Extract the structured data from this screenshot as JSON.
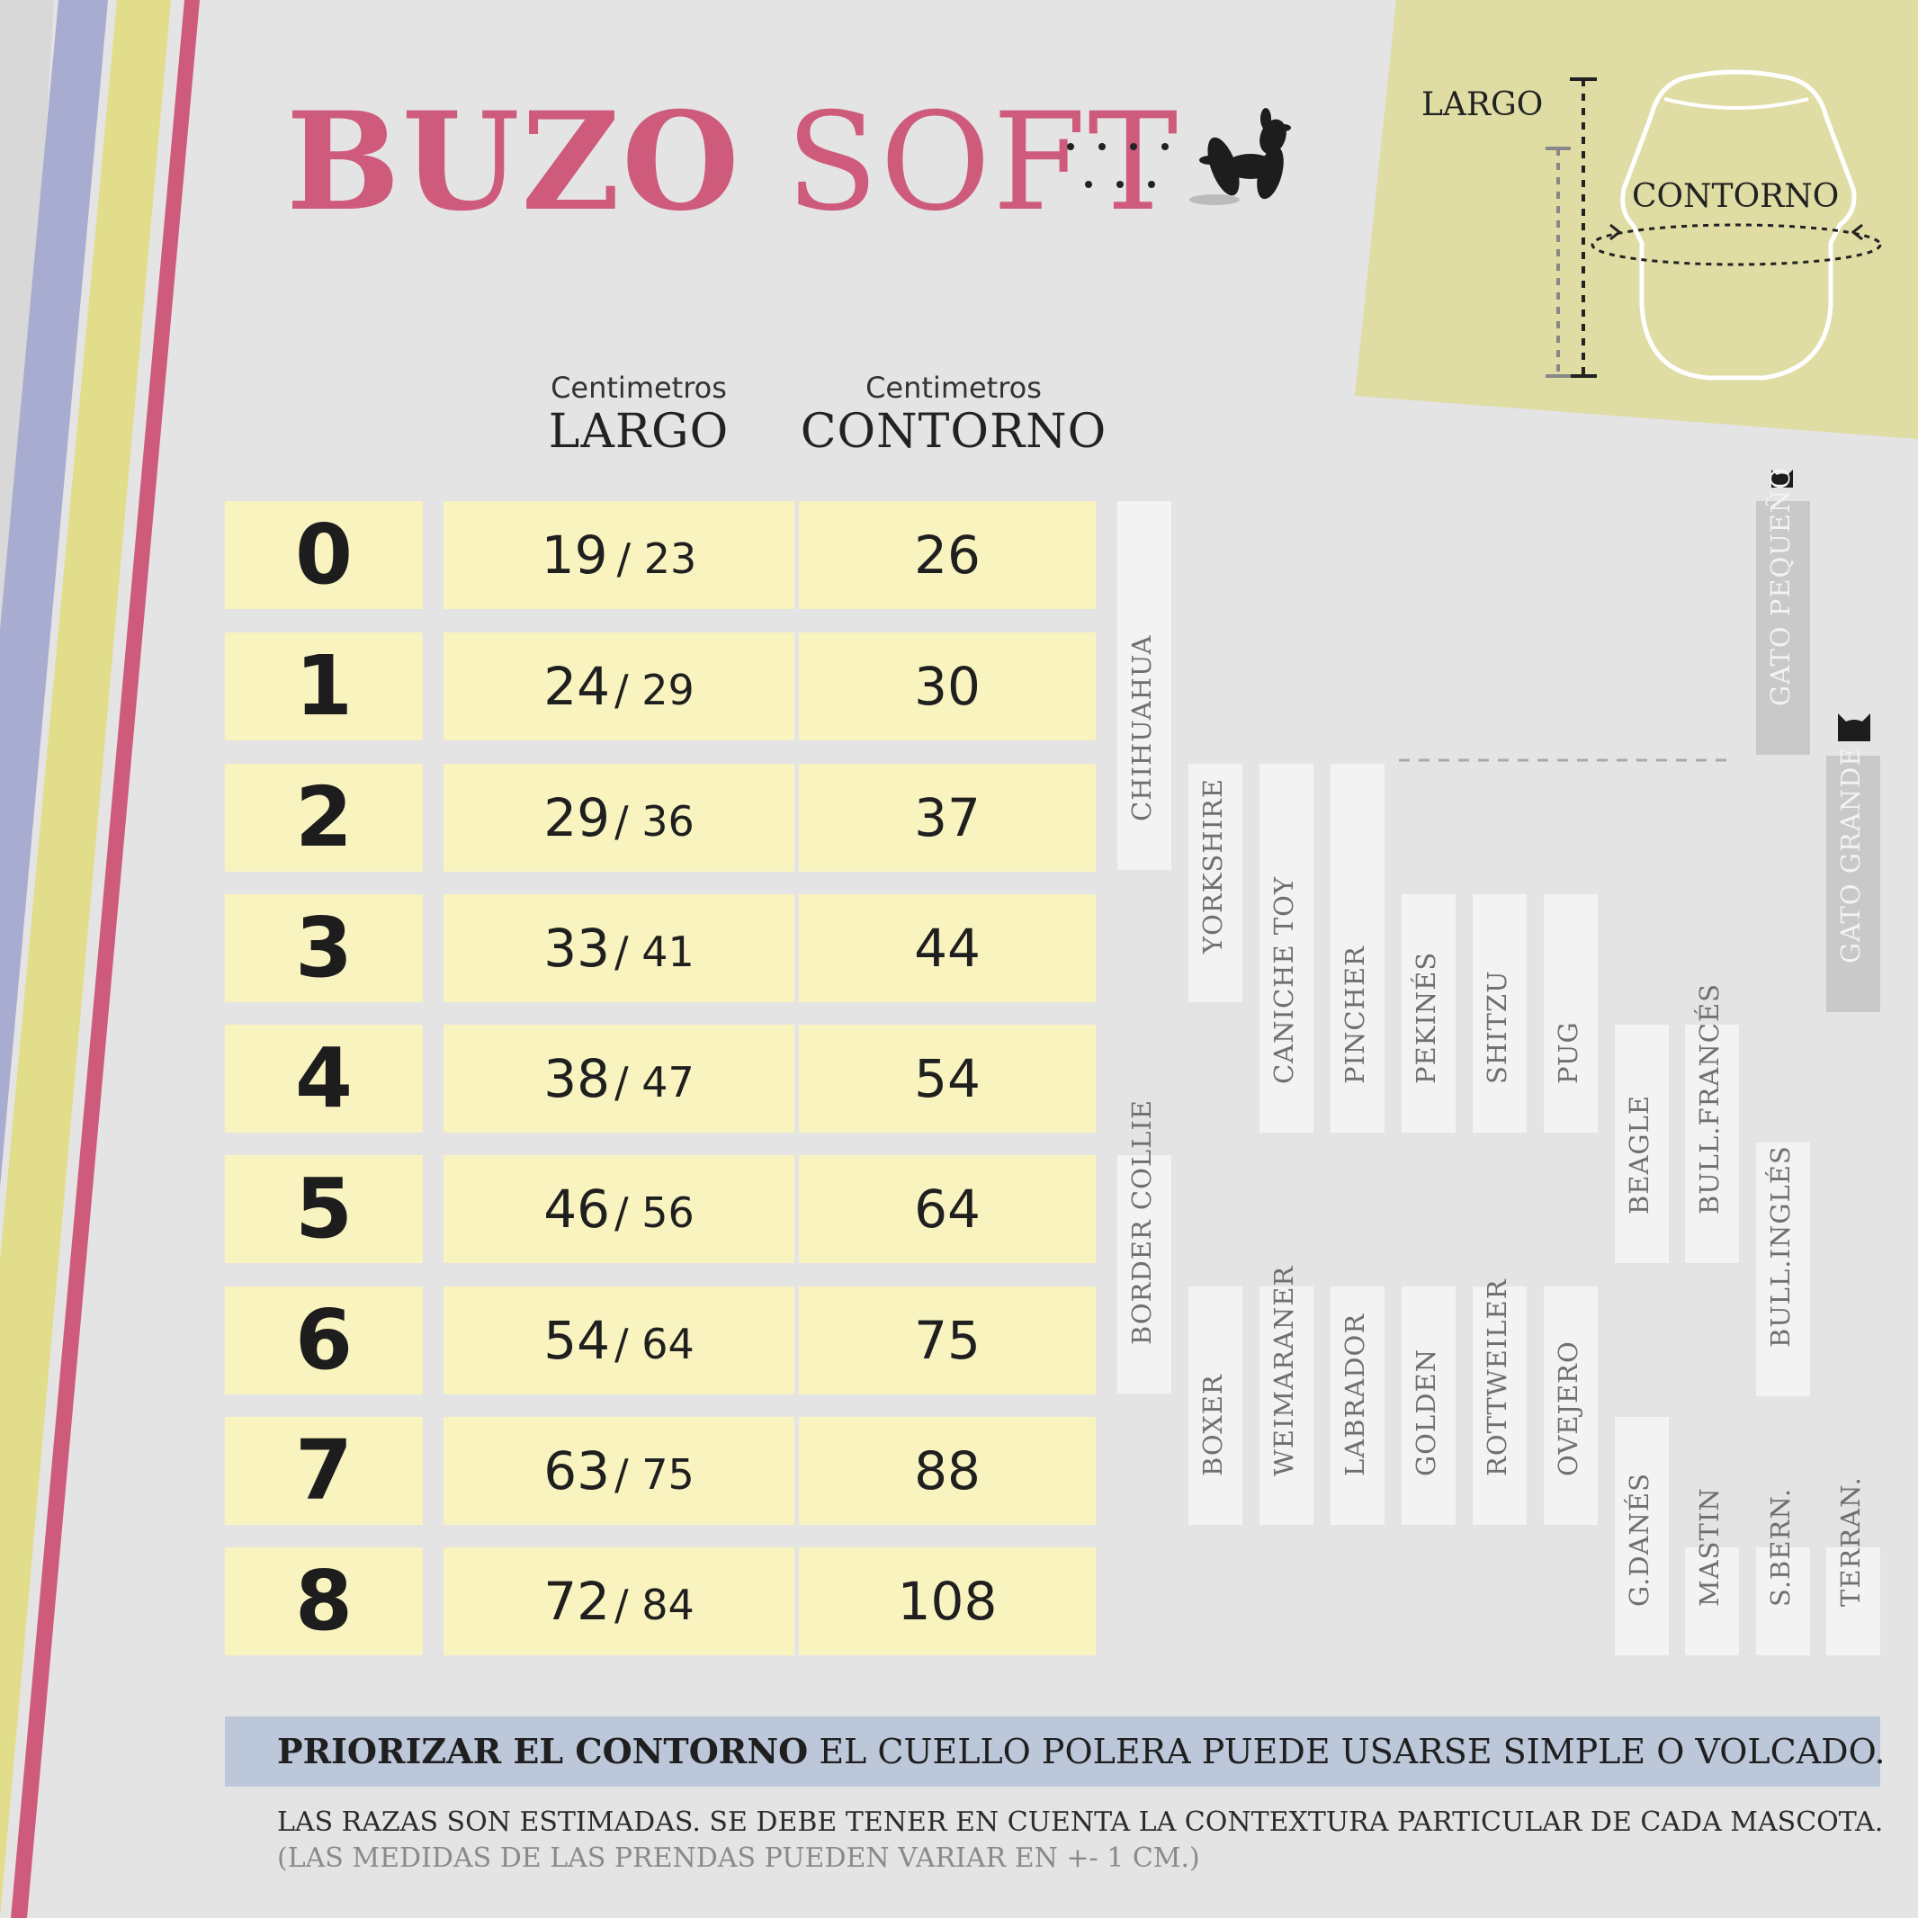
{
  "title": {
    "bold": "BUZO",
    "light": "SOFT"
  },
  "colors": {
    "accent": "#cf5b7c",
    "cell": "#f9f3bf",
    "diagram_bg": "#dfdca4",
    "note_bar": "#bcc7da",
    "stripe_blue": "#a7acd0",
    "stripe_yellow": "#e2dd8a"
  },
  "diagram": {
    "largo_label": "LARGO",
    "contorno_label": "CONTORNO"
  },
  "columns": {
    "largo": {
      "unit": "Centimetros",
      "label": "LARGO"
    },
    "contorno": {
      "unit": "Centimetros",
      "label": "CONTORNO"
    }
  },
  "sizes": [
    {
      "size": "0",
      "largo_a": "19",
      "largo_b": "23",
      "contorno": "26"
    },
    {
      "size": "1",
      "largo_a": "24",
      "largo_b": "29",
      "contorno": "30"
    },
    {
      "size": "2",
      "largo_a": "29",
      "largo_b": "36",
      "contorno": "37"
    },
    {
      "size": "3",
      "largo_a": "33",
      "largo_b": "41",
      "contorno": "44"
    },
    {
      "size": "4",
      "largo_a": "38",
      "largo_b": "47",
      "contorno": "54"
    },
    {
      "size": "5",
      "largo_a": "46",
      "largo_b": "56",
      "contorno": "64"
    },
    {
      "size": "6",
      "largo_a": "54",
      "largo_b": "64",
      "contorno": "75"
    },
    {
      "size": "7",
      "largo_a": "63",
      "largo_b": "75",
      "contorno": "88"
    },
    {
      "size": "8",
      "largo_a": "72",
      "largo_b": "84",
      "contorno": "108"
    }
  ],
  "breeds": {
    "chihuahua": "CHIHUAHUA",
    "border_collie": "BORDER COLLIE",
    "yorkshire": "YORKSHIRE",
    "boxer": "BOXER",
    "caniche_toy": "CANICHE TOY",
    "weimaraner": "WEIMARANER",
    "pincher": "PINCHER",
    "labrador": "LABRADOR",
    "pekines": "PEKINÉS",
    "golden": "GOLDEN",
    "shitzu": "SHITZU",
    "rottweiler": "ROTTWEILER",
    "pug": "PUG",
    "ovejero": "OVEJERO",
    "beagle": "BEAGLE",
    "g_danes": "G.DANÉS",
    "bull_frances": "BULL.FRANCÉS",
    "mastin": "MASTIN",
    "bull_ingles": "BULL.INGLÉS",
    "s_bern": "S.BERN.",
    "terran": "TERRAN.",
    "gato_pequeno": "GATO PEQUEÑO",
    "gato_grande": "GATO GRANDE"
  },
  "note": {
    "bold": "PRIORIZAR EL CONTORNO",
    "rest": "EL CUELLO POLERA PUEDE USARSE SIMPLE O VOLCADO."
  },
  "disclaimer": "LAS RAZAS SON ESTIMADAS. SE DEBE TENER EN CUENTA LA CONTEXTURA PARTICULAR DE CADA MASCOTA.",
  "disclaimer_note": "(LAS MEDIDAS DE LAS PRENDAS PUEDEN VARIAR EN +- 1 CM.)"
}
